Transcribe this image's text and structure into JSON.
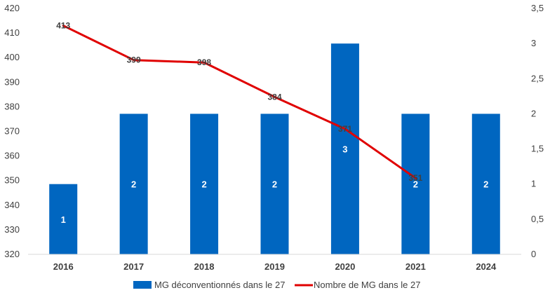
{
  "chart_data": {
    "type": "bar",
    "categories": [
      "2016",
      "2017",
      "2018",
      "2019",
      "2020",
      "2021",
      "2024"
    ],
    "series": [
      {
        "name": "MG déconventionnés dans le 27",
        "type": "bar",
        "axis": "right",
        "color": "#0066c0",
        "values": [
          1,
          2,
          2,
          2,
          3,
          2,
          2
        ],
        "data_labels": [
          "1",
          "2",
          "2",
          "2",
          "3",
          "2",
          "2"
        ]
      },
      {
        "name": "Nombre de MG dans le 27",
        "type": "line",
        "axis": "left",
        "color": "#e00000",
        "values": [
          413,
          399,
          398,
          384,
          371,
          351,
          null
        ],
        "data_labels": [
          "413",
          "399",
          "398",
          "384",
          "371",
          "351",
          ""
        ]
      }
    ],
    "y_left": {
      "min": 320,
      "max": 420,
      "ticks": [
        "320",
        "330",
        "340",
        "350",
        "360",
        "370",
        "380",
        "390",
        "400",
        "410",
        "420"
      ]
    },
    "y_right": {
      "min": 0,
      "max": 3.5,
      "ticks": [
        "0",
        "0,5",
        "1",
        "1,5",
        "2",
        "2,5",
        "3",
        "3,5"
      ]
    },
    "grid": false,
    "legend_position": "bottom"
  }
}
